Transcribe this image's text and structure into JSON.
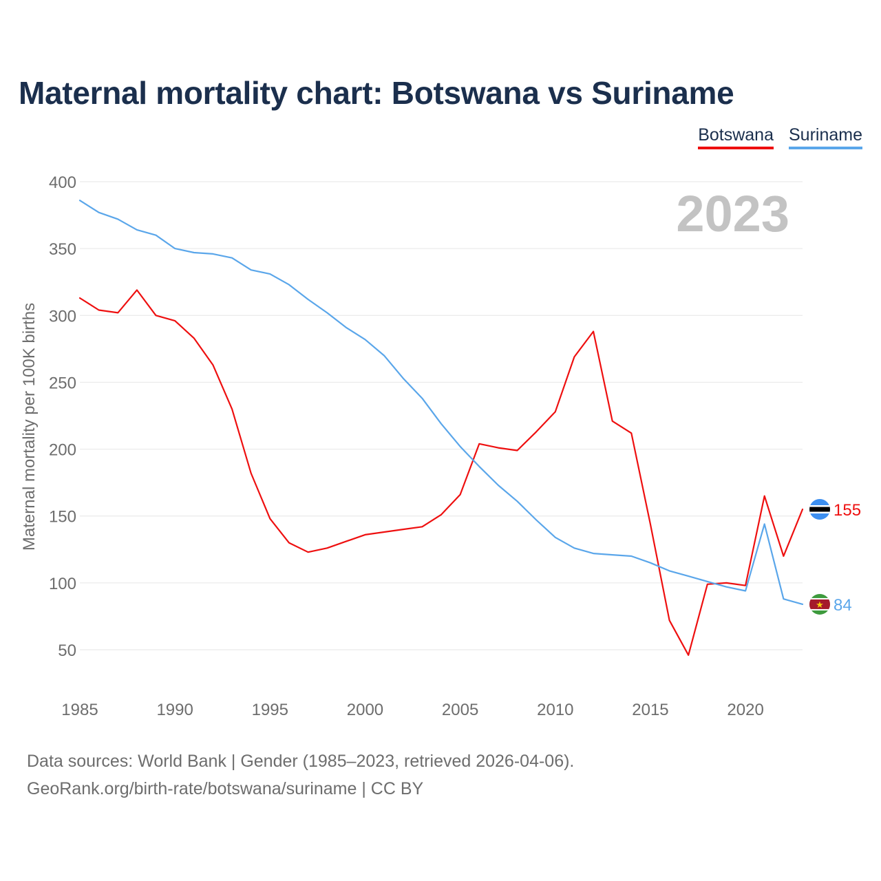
{
  "title": "Maternal mortality chart: Botswana vs Suriname",
  "legend": {
    "items": [
      "Botswana",
      "Suriname"
    ]
  },
  "year_label": "2023",
  "footer": {
    "line1": "Data sources: World Bank | Gender (1985–2023, retrieved 2026-04-06).",
    "line2": "GeoRank.org/birth-rate/botswana/suriname | CC BY"
  },
  "chart_data": {
    "type": "line",
    "title": "Maternal mortality chart: Botswana vs Suriname",
    "xlabel": "",
    "ylabel": "Maternal mortality per 100K births",
    "xlim": [
      1985,
      2023
    ],
    "ylim": [
      50,
      400
    ],
    "x_ticks": [
      1985,
      1990,
      1995,
      2000,
      2005,
      2010,
      2015,
      2020
    ],
    "y_ticks": [
      50,
      100,
      150,
      200,
      250,
      300,
      350,
      400
    ],
    "grid": true,
    "x": [
      1985,
      1986,
      1987,
      1988,
      1989,
      1990,
      1991,
      1992,
      1993,
      1994,
      1995,
      1996,
      1997,
      1998,
      1999,
      2000,
      2001,
      2002,
      2003,
      2004,
      2005,
      2006,
      2007,
      2008,
      2009,
      2010,
      2011,
      2012,
      2013,
      2014,
      2015,
      2016,
      2017,
      2018,
      2019,
      2020,
      2021,
      2022,
      2023
    ],
    "series": [
      {
        "name": "Botswana",
        "color": "#ee0f0f",
        "end_label": "155",
        "values": [
          313,
          304,
          302,
          319,
          300,
          296,
          283,
          263,
          230,
          182,
          148,
          130,
          123,
          126,
          131,
          136,
          138,
          140,
          142,
          151,
          166,
          204,
          201,
          199,
          213,
          228,
          269,
          288,
          221,
          212,
          144,
          72,
          46,
          99,
          100,
          98,
          165,
          120,
          155
        ]
      },
      {
        "name": "Suriname",
        "color": "#5aa6ea",
        "end_label": "84",
        "values": [
          386,
          377,
          372,
          364,
          360,
          350,
          347,
          346,
          343,
          334,
          331,
          323,
          312,
          302,
          291,
          282,
          270,
          253,
          238,
          219,
          202,
          187,
          173,
          161,
          147,
          134,
          126,
          122,
          121,
          120,
          115,
          109,
          105,
          101,
          97,
          94,
          144,
          88,
          84
        ]
      }
    ]
  }
}
